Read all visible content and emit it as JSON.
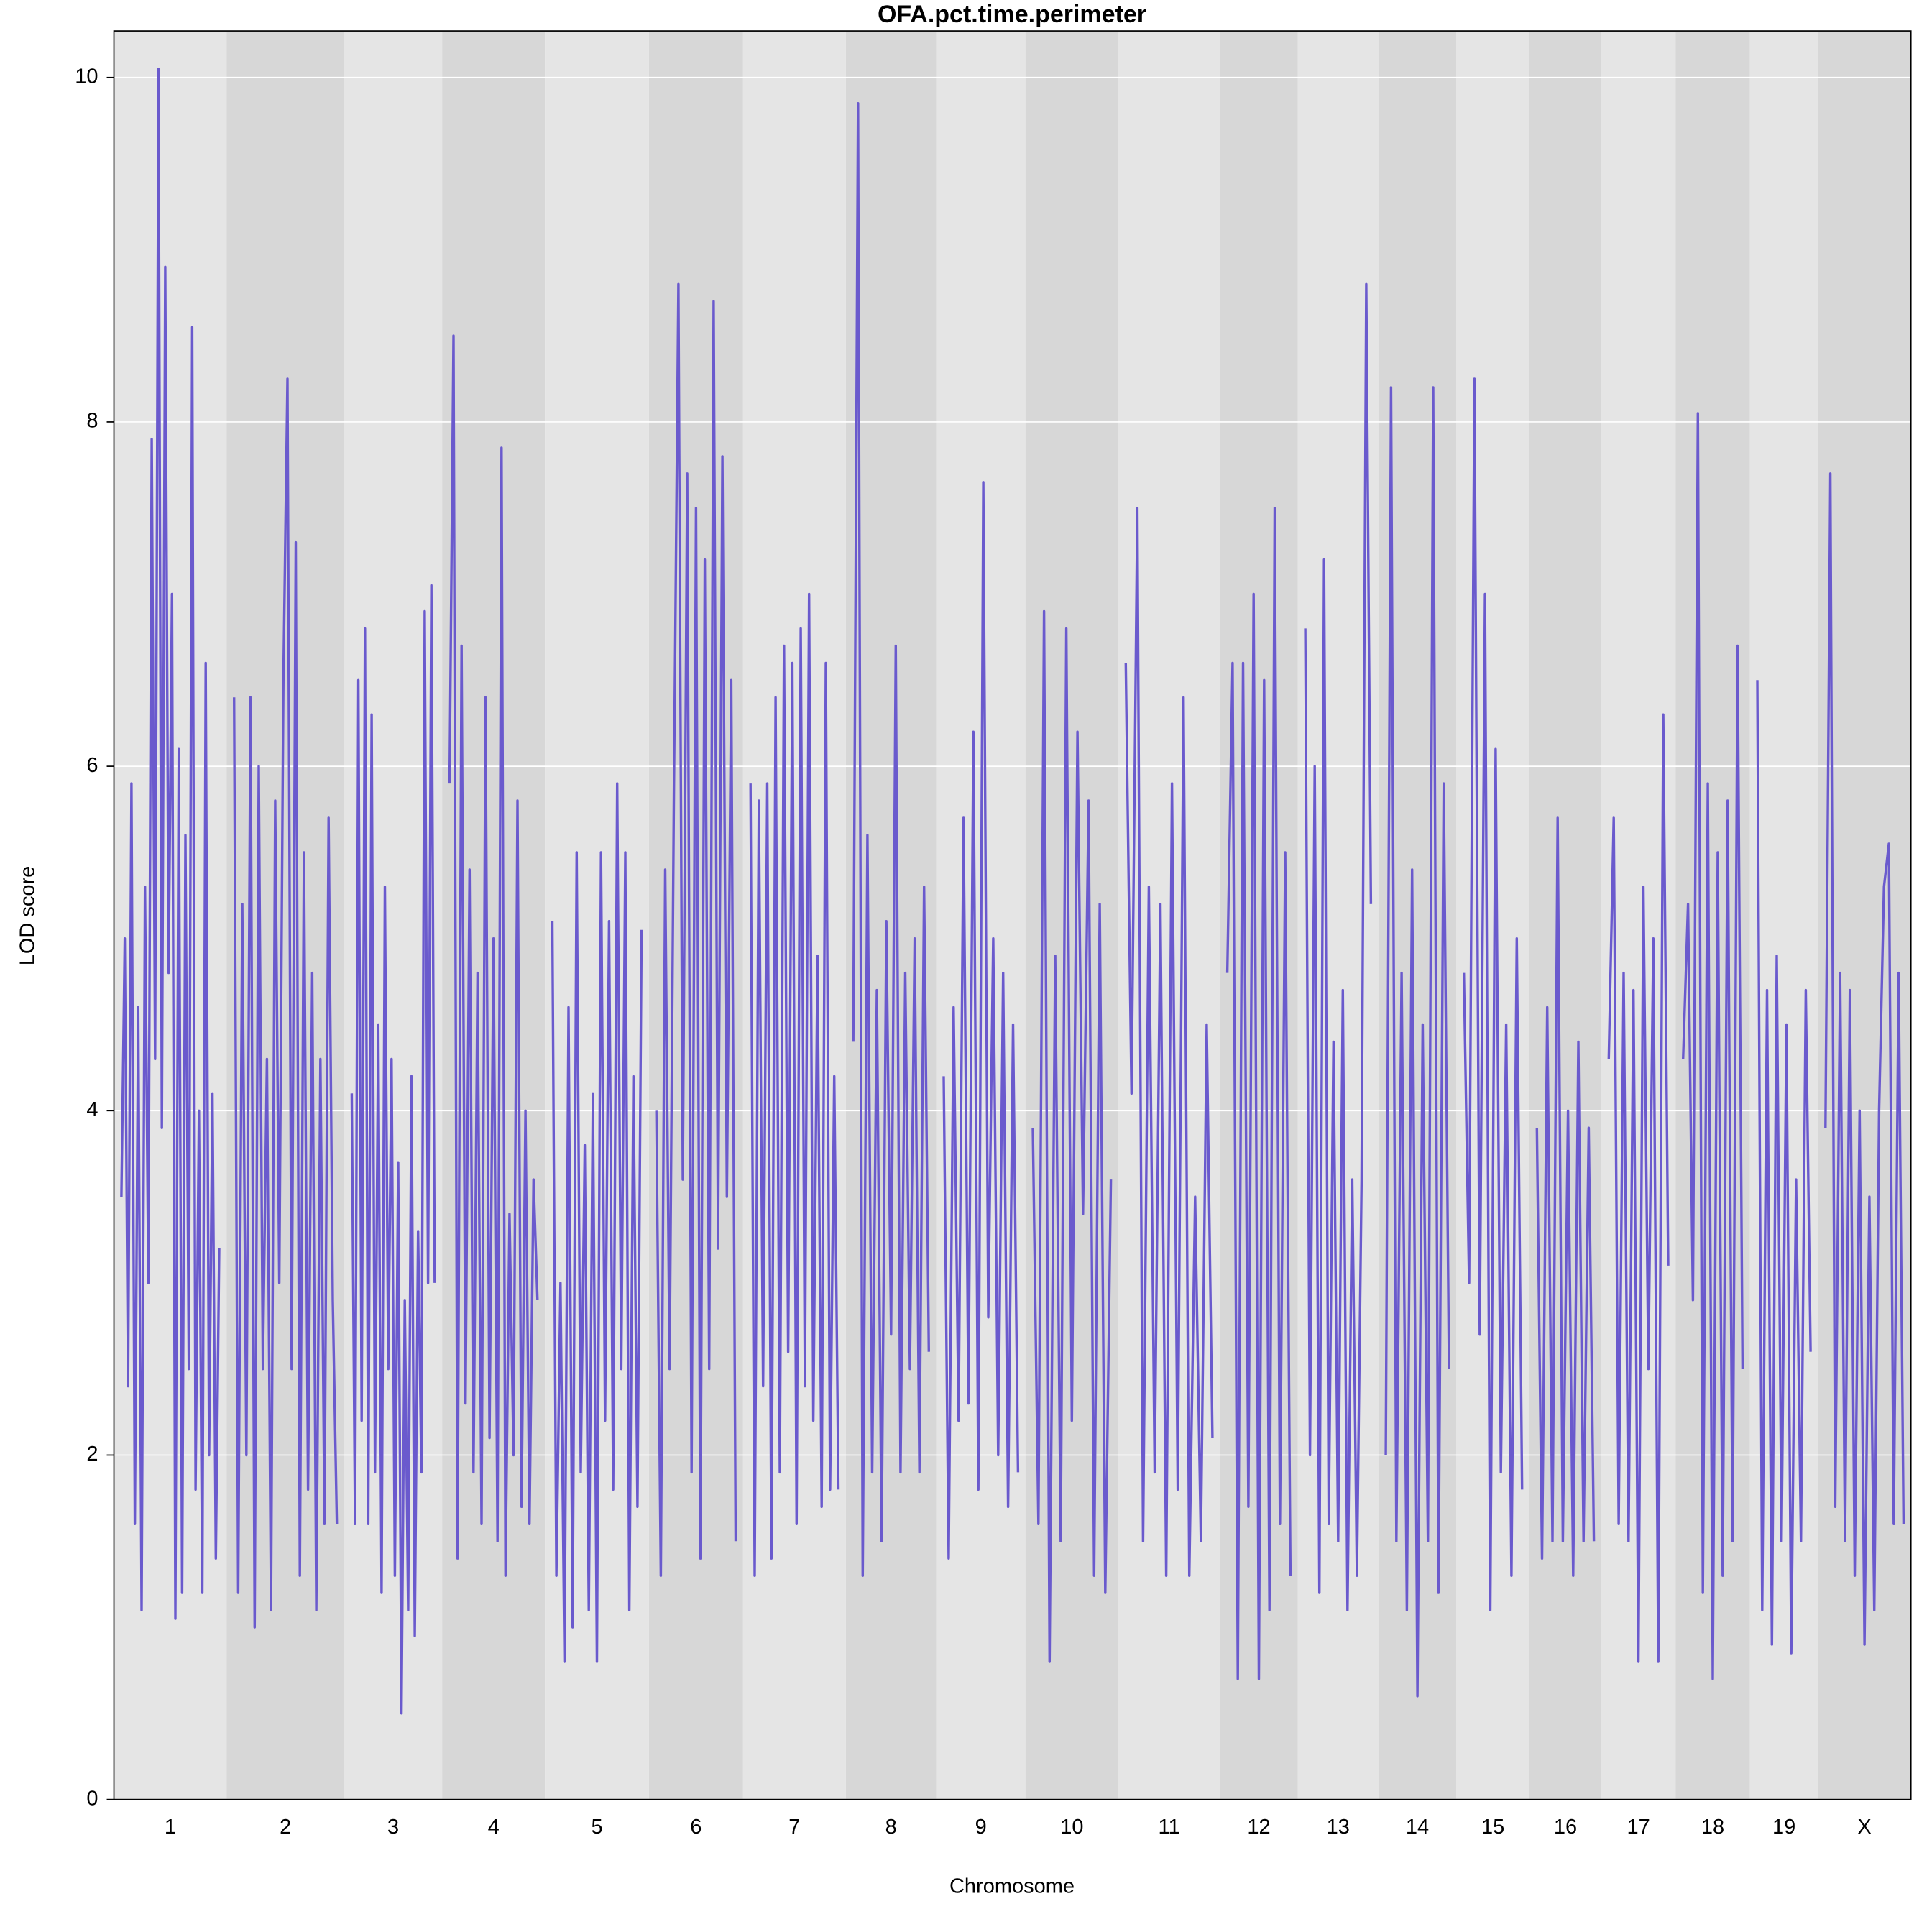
{
  "chart_data": {
    "type": "line",
    "title": "OFA.pct.time.perimeter",
    "x_label": "Chromosome",
    "y_label": "LOD score",
    "categories": [
      "1",
      "2",
      "3",
      "4",
      "5",
      "6",
      "7",
      "8",
      "9",
      "10",
      "11",
      "12",
      "13",
      "14",
      "15",
      "16",
      "17",
      "18",
      "19",
      "X"
    ],
    "color": "#6a5acd",
    "values": [
      [
        3.5,
        5.0,
        2.4,
        5.9,
        1.6,
        4.6,
        1.1,
        5.3,
        3.0,
        7.9,
        4.3,
        10.05,
        3.9,
        8.9,
        4.8,
        7.0,
        1.05,
        6.1,
        1.2,
        5.6,
        2.5,
        8.55,
        1.8,
        4.0,
        1.2,
        6.6,
        2.0,
        4.1,
        1.4,
        3.2
      ],
      [
        6.4,
        1.2,
        5.2,
        2.0,
        6.4,
        1.0,
        6.0,
        2.5,
        4.3,
        1.1,
        5.8,
        3.0,
        6.5,
        8.25,
        2.5,
        7.3,
        1.3,
        5.5,
        1.8,
        4.8,
        1.1,
        4.3,
        1.6,
        5.7,
        2.9,
        1.6
      ],
      [
        4.1,
        1.6,
        6.5,
        2.2,
        6.8,
        1.6,
        6.3,
        1.9,
        4.5,
        1.2,
        5.3,
        2.5,
        4.3,
        1.3,
        3.7,
        0.5,
        2.9,
        1.1,
        4.2,
        0.95,
        3.3,
        1.9,
        6.9,
        3.0,
        7.05,
        3.0
      ],
      [
        5.9,
        8.5,
        1.4,
        6.7,
        2.3,
        5.4,
        1.9,
        4.8,
        1.6,
        6.4,
        2.1,
        5.0,
        1.5,
        7.85,
        1.3,
        3.4,
        2.0,
        5.8,
        1.7,
        4.0,
        1.6,
        3.6,
        2.9
      ],
      [
        5.1,
        1.3,
        3.0,
        0.8,
        4.6,
        1.0,
        5.5,
        1.9,
        3.8,
        1.1,
        4.1,
        0.8,
        5.5,
        2.2,
        5.1,
        1.8,
        5.9,
        2.5,
        5.5,
        1.1,
        4.2,
        1.7,
        5.05
      ],
      [
        4.0,
        1.3,
        5.4,
        2.5,
        5.9,
        8.8,
        3.6,
        7.7,
        1.9,
        7.5,
        1.4,
        7.2,
        2.5,
        8.7,
        3.2,
        7.8,
        3.5,
        6.5,
        1.5
      ],
      [
        5.9,
        1.3,
        5.8,
        2.4,
        5.9,
        1.4,
        6.4,
        1.9,
        6.7,
        2.6,
        6.6,
        1.6,
        6.8,
        2.4,
        7.0,
        2.2,
        4.9,
        1.7,
        6.6,
        1.8,
        4.2,
        1.8
      ],
      [
        4.4,
        9.85,
        1.3,
        5.6,
        1.9,
        4.7,
        1.5,
        5.1,
        2.7,
        6.7,
        1.9,
        4.8,
        2.5,
        5.0,
        1.9,
        5.3,
        2.6
      ],
      [
        4.2,
        1.4,
        4.6,
        2.2,
        5.7,
        2.3,
        6.2,
        1.8,
        7.65,
        2.8,
        5.0,
        2.0,
        4.8,
        1.7,
        4.5,
        1.9
      ],
      [
        3.9,
        1.6,
        6.9,
        0.8,
        4.9,
        1.5,
        6.8,
        2.2,
        6.2,
        3.4,
        5.8,
        1.3,
        5.2,
        1.2,
        3.6
      ],
      [
        6.6,
        4.1,
        7.5,
        1.5,
        5.3,
        1.9,
        5.2,
        1.3,
        5.9,
        1.8,
        6.4,
        1.3,
        3.5,
        1.5,
        4.5,
        2.1
      ],
      [
        4.8,
        6.6,
        0.7,
        6.6,
        1.7,
        7.0,
        0.7,
        6.5,
        1.1,
        7.5,
        1.6,
        5.5,
        1.3
      ],
      [
        6.8,
        2.0,
        6.0,
        1.2,
        7.2,
        1.6,
        4.4,
        1.5,
        4.7,
        1.1,
        3.6,
        1.3,
        3.6,
        8.8,
        5.2
      ],
      [
        2.0,
        8.2,
        1.5,
        4.8,
        1.1,
        5.4,
        0.6,
        4.5,
        1.5,
        8.2,
        1.2,
        5.9,
        2.5
      ],
      [
        4.8,
        3.0,
        8.25,
        2.7,
        7.0,
        1.1,
        6.1,
        1.9,
        4.5,
        1.3,
        5.0,
        1.8
      ],
      [
        3.9,
        1.4,
        4.6,
        1.5,
        5.7,
        1.5,
        4.0,
        1.3,
        4.4,
        1.5,
        3.9,
        1.5
      ],
      [
        4.3,
        5.7,
        1.6,
        4.8,
        1.5,
        4.7,
        0.8,
        5.3,
        2.5,
        5.0,
        0.8,
        6.3,
        3.1
      ],
      [
        4.3,
        5.2,
        2.9,
        8.05,
        1.2,
        5.9,
        0.7,
        5.5,
        1.3,
        5.8,
        1.5,
        6.7,
        2.5
      ],
      [
        6.5,
        1.1,
        4.7,
        0.9,
        4.9,
        1.5,
        4.5,
        0.85,
        3.6,
        1.5,
        4.7,
        2.6
      ],
      [
        3.9,
        7.7,
        1.7,
        4.8,
        1.5,
        4.7,
        1.3,
        4.0,
        0.9,
        3.5,
        1.1,
        4.0,
        5.3,
        5.55,
        1.6,
        4.8,
        1.6
      ]
    ],
    "ylim": [
      0,
      10.27
    ],
    "yticks": [
      0,
      2,
      4,
      6,
      8,
      10
    ],
    "grid": true
  }
}
